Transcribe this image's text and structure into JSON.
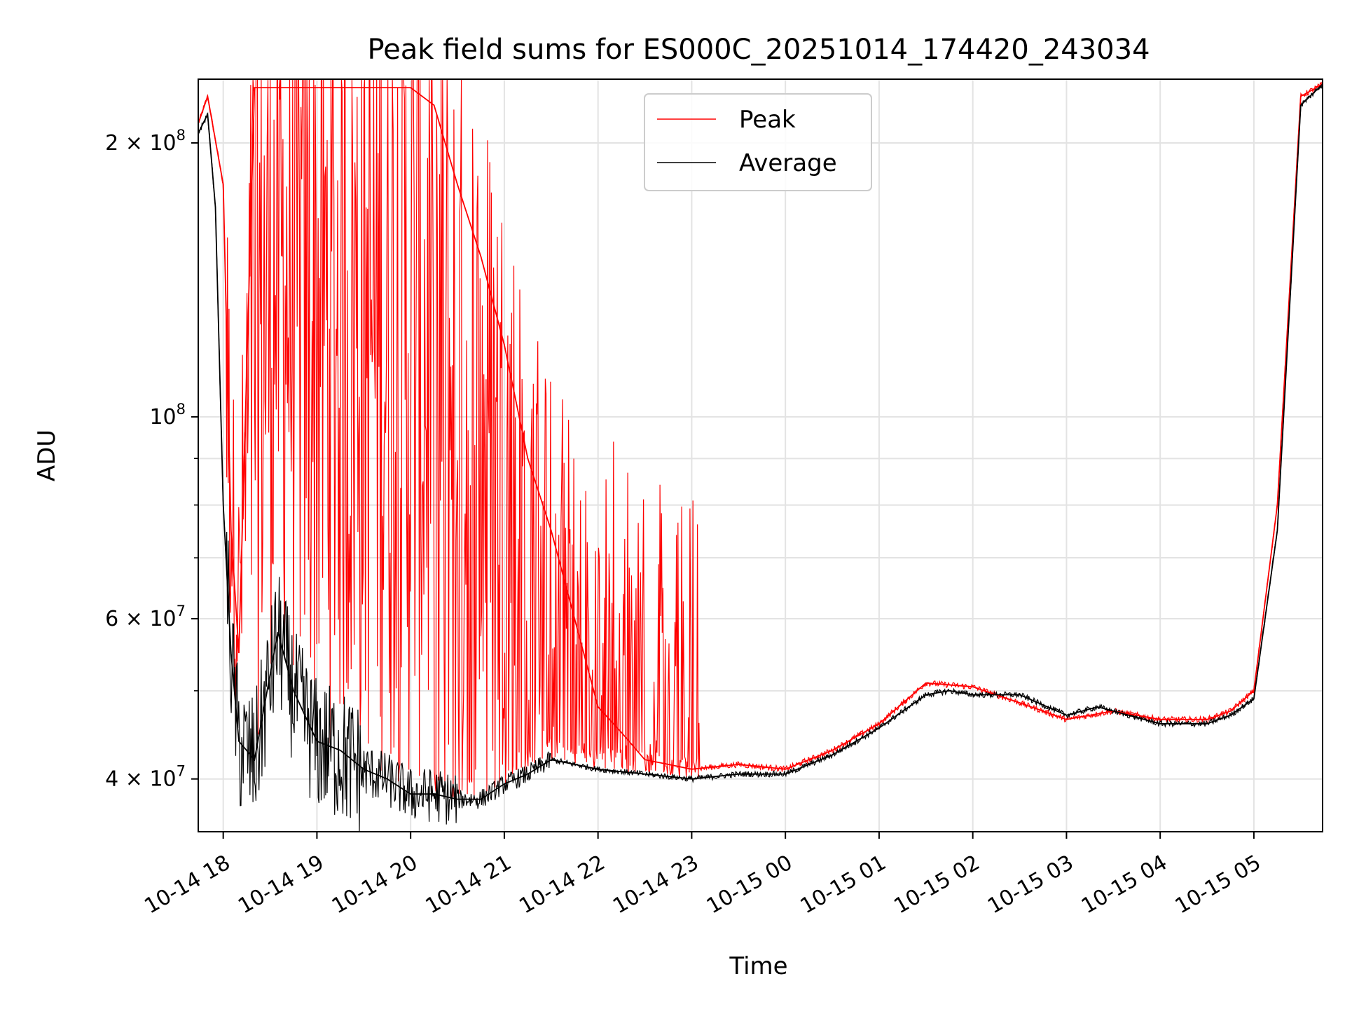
{
  "chart_data": {
    "type": "line",
    "title": "Peak field sums for ES000C_20251014_174420_243034",
    "xlabel": "Time",
    "ylabel": "ADU",
    "yscale": "log",
    "grid": true,
    "legend_position": "top-center",
    "xlim": [
      "2025-10-14 17:44",
      "2025-10-15 05:44"
    ],
    "ylim": [
      35000000,
      235000000
    ],
    "x_ticks": [
      "10-14 18",
      "10-14 19",
      "10-14 20",
      "10-14 21",
      "10-14 22",
      "10-14 23",
      "10-15 00",
      "10-15 01",
      "10-15 02",
      "10-15 03",
      "10-15 04",
      "10-15 05"
    ],
    "y_ticks": [
      {
        "value": 40000000,
        "mantissa": "4",
        "exponent": "7"
      },
      {
        "value": 60000000,
        "mantissa": "6",
        "exponent": "7"
      },
      {
        "value": 100000000,
        "mantissa": "",
        "exponent": "8"
      },
      {
        "value": 200000000,
        "mantissa": "2",
        "exponent": "8"
      }
    ],
    "series": [
      {
        "name": "Peak",
        "color": "#ff0000",
        "x": [
          "2025-10-14 17:44",
          "2025-10-14 17:50",
          "2025-10-14 18:00",
          "2025-10-14 18:05",
          "2025-10-14 18:10",
          "2025-10-14 18:20",
          "2025-10-14 18:30",
          "2025-10-14 18:45",
          "2025-10-14 19:00",
          "2025-10-14 19:15",
          "2025-10-14 19:30",
          "2025-10-14 19:45",
          "2025-10-14 20:00",
          "2025-10-14 20:15",
          "2025-10-14 20:30",
          "2025-10-14 20:45",
          "2025-10-14 21:00",
          "2025-10-14 21:15",
          "2025-10-14 21:30",
          "2025-10-14 21:45",
          "2025-10-14 22:00",
          "2025-10-14 22:15",
          "2025-10-14 22:30",
          "2025-10-14 22:45",
          "2025-10-14 23:00",
          "2025-10-14 23:30",
          "2025-10-15 00:00",
          "2025-10-15 00:30",
          "2025-10-15 01:00",
          "2025-10-15 01:30",
          "2025-10-15 02:00",
          "2025-10-15 02:30",
          "2025-10-15 03:00",
          "2025-10-15 03:30",
          "2025-10-15 04:00",
          "2025-10-15 04:30",
          "2025-10-15 04:45",
          "2025-10-15 05:00",
          "2025-10-15 05:15",
          "2025-10-15 05:30",
          "2025-10-15 05:44"
        ],
        "y": [
          210000000,
          225000000,
          180000000,
          75000000,
          55000000,
          230000000,
          230000000,
          230000000,
          230000000,
          230000000,
          230000000,
          230000000,
          230000000,
          220000000,
          180000000,
          150000000,
          120000000,
          90000000,
          75000000,
          60000000,
          48000000,
          45000000,
          42000000,
          41500000,
          41000000,
          41500000,
          41000000,
          43000000,
          46000000,
          51000000,
          50500000,
          48500000,
          46500000,
          47500000,
          46500000,
          46500000,
          47500000,
          50000000,
          80000000,
          225000000,
          232000000
        ]
      },
      {
        "name": "Average",
        "color": "#000000",
        "x": [
          "2025-10-14 17:44",
          "2025-10-14 17:50",
          "2025-10-14 17:55",
          "2025-10-14 18:00",
          "2025-10-14 18:05",
          "2025-10-14 18:10",
          "2025-10-14 18:20",
          "2025-10-14 18:35",
          "2025-10-14 18:45",
          "2025-10-14 19:00",
          "2025-10-14 19:15",
          "2025-10-14 19:30",
          "2025-10-14 19:45",
          "2025-10-14 20:00",
          "2025-10-14 20:15",
          "2025-10-14 20:30",
          "2025-10-14 20:45",
          "2025-10-14 21:00",
          "2025-10-14 21:15",
          "2025-10-14 21:30",
          "2025-10-14 21:45",
          "2025-10-14 22:00",
          "2025-10-14 22:30",
          "2025-10-14 23:00",
          "2025-10-14 23:30",
          "2025-10-15 00:00",
          "2025-10-15 00:30",
          "2025-10-15 01:00",
          "2025-10-15 01:30",
          "2025-10-15 01:45",
          "2025-10-15 02:00",
          "2025-10-15 02:30",
          "2025-10-15 03:00",
          "2025-10-15 03:20",
          "2025-10-15 03:30",
          "2025-10-15 04:00",
          "2025-10-15 04:30",
          "2025-10-15 04:45",
          "2025-10-15 05:00",
          "2025-10-15 05:15",
          "2025-10-15 05:30",
          "2025-10-15 05:44"
        ],
        "y": [
          205000000,
          215000000,
          170000000,
          80000000,
          55000000,
          44000000,
          42000000,
          58000000,
          50000000,
          44000000,
          43000000,
          41000000,
          40000000,
          38500000,
          38500000,
          38000000,
          38000000,
          39500000,
          40500000,
          42000000,
          41500000,
          41000000,
          40500000,
          40000000,
          40500000,
          40500000,
          42500000,
          45500000,
          49500000,
          50000000,
          49500000,
          49500000,
          47000000,
          48000000,
          47500000,
          46000000,
          46000000,
          47000000,
          49000000,
          75000000,
          220000000,
          232000000
        ]
      }
    ]
  }
}
